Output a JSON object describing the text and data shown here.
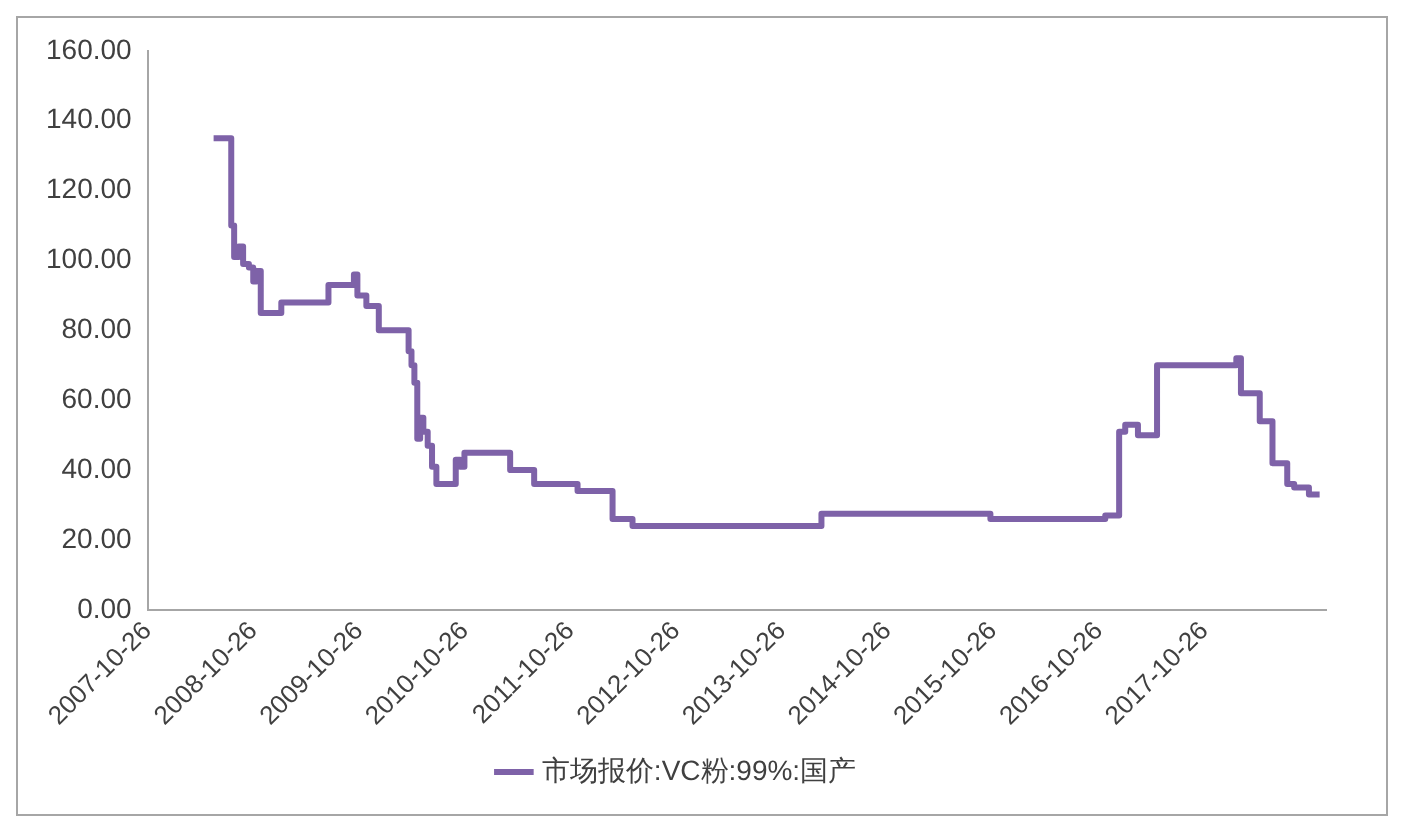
{
  "chart_data": {
    "type": "step",
    "x": [
      "2008-06-10",
      "2008-08-10",
      "2008-08-20",
      "2008-09-05",
      "2008-09-20",
      "2008-10-10",
      "2008-10-25",
      "2008-11-05",
      "2008-11-20",
      "2009-01-30",
      "2009-07-12",
      "2009-10-08",
      "2009-10-20",
      "2009-11-20",
      "2010-01-02",
      "2010-04-15",
      "2010-04-25",
      "2010-05-05",
      "2010-05-15",
      "2010-05-25",
      "2010-06-05",
      "2010-06-20",
      "2010-07-05",
      "2010-07-20",
      "2010-09-25",
      "2010-10-10",
      "2010-10-25",
      "2011-04-01",
      "2011-06-23",
      "2011-11-20",
      "2012-03-20",
      "2012-05-28",
      "2014-03-12",
      "2015-10-17",
      "2016-11-17",
      "2017-01-04",
      "2017-01-25",
      "2017-03-10",
      "2017-05-15",
      "2018-02-13",
      "2018-03-01",
      "2018-05-05",
      "2018-06-18",
      "2018-08-08",
      "2018-09-01",
      "2018-10-22",
      "2018-11-28"
    ],
    "series": [
      {
        "name": "市场报价:VC粉:99%:国产",
        "color": "#7e62a8",
        "values": [
          135,
          110,
          101,
          104,
          99,
          98,
          94,
          97,
          85,
          88,
          93,
          96,
          90,
          87,
          80,
          74,
          70,
          65,
          49,
          55,
          51,
          47,
          41,
          36,
          43,
          41,
          45,
          40,
          36,
          34,
          26,
          24,
          27.5,
          26,
          27,
          51,
          53,
          50,
          70,
          72,
          62,
          54,
          42,
          36,
          35,
          33,
          33
        ]
      }
    ],
    "xlim": [
      "2007-10-26",
      "2018-12-20"
    ],
    "xticks": [
      "2007-10-26",
      "2008-10-26",
      "2009-10-26",
      "2010-10-26",
      "2011-10-26",
      "2012-10-26",
      "2013-10-26",
      "2014-10-26",
      "2015-10-26",
      "2016-10-26",
      "2017-10-26"
    ],
    "ylim": [
      0,
      160
    ],
    "yticks": [
      {
        "value": 0,
        "label": "0.00"
      },
      {
        "value": 20,
        "label": "20.00"
      },
      {
        "value": 40,
        "label": "40.00"
      },
      {
        "value": 60,
        "label": "60.00"
      },
      {
        "value": 80,
        "label": "80.00"
      },
      {
        "value": 100,
        "label": "100.00"
      },
      {
        "value": 120,
        "label": "120.00"
      },
      {
        "value": 140,
        "label": "140.00"
      },
      {
        "value": 160,
        "label": "160.00"
      }
    ],
    "grid": false,
    "legend": "bottom"
  }
}
